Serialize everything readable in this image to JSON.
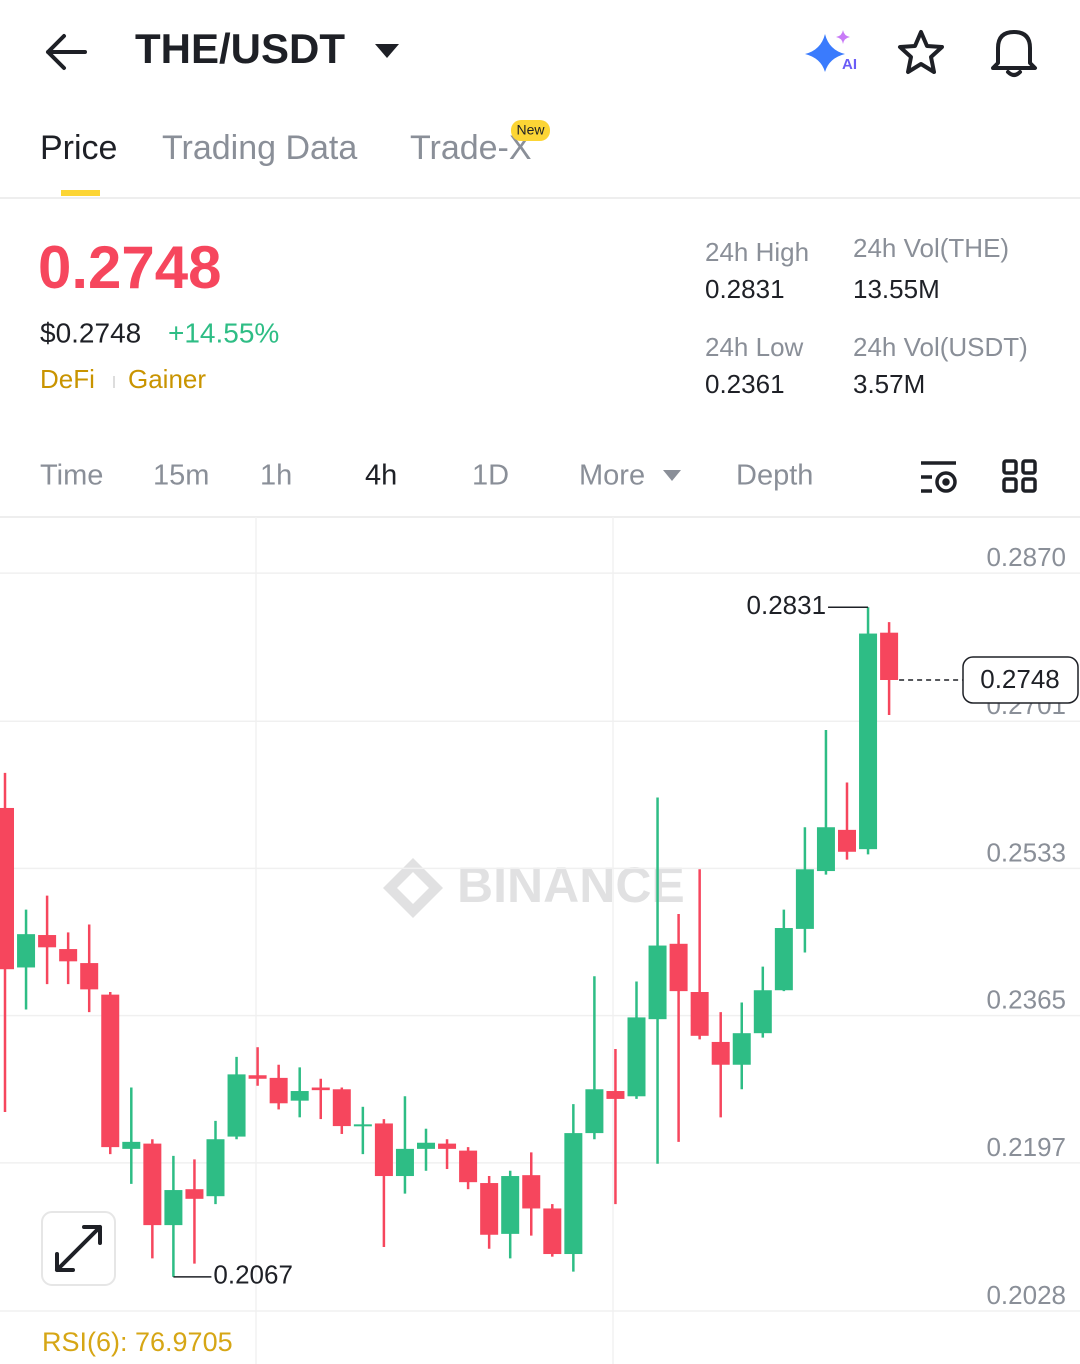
{
  "header": {
    "title": "THE/USDT"
  },
  "tabs": [
    "Price",
    "Trading Data",
    "Trade-X"
  ],
  "new_badge": "New",
  "price": {
    "last": "0.2748",
    "usd": "$0.2748",
    "change": "+14.55%",
    "tags": [
      "DeFi",
      "Gainer"
    ]
  },
  "stats": [
    {
      "label": "24h High",
      "value": "0.2831"
    },
    {
      "label": "24h Vol(THE)",
      "value": "13.55M"
    },
    {
      "label": "24h Low",
      "value": "0.2361"
    },
    {
      "label": "24h Vol(USDT)",
      "value": "3.57M"
    }
  ],
  "intervals": [
    "Time",
    "15m",
    "1h",
    "4h",
    "1D",
    "More",
    "Depth"
  ],
  "watermark": "BINANCE",
  "rsi": "RSI(6): 76.9705",
  "chart_data": {
    "type": "candlestick",
    "up_color": "#2ebd85",
    "down_color": "#f6465d",
    "open": [
      0.2602,
      0.242,
      0.2457,
      0.2441,
      0.2425,
      0.2389,
      0.2213,
      0.2219,
      0.2126,
      0.2167,
      0.2159,
      0.2227,
      0.2297,
      0.2294,
      0.2268,
      0.2283,
      0.2281,
      0.2239,
      0.2242,
      0.2182,
      0.2213,
      0.2219,
      0.2211,
      0.2174,
      0.2116,
      0.2183,
      0.2145,
      0.2093,
      0.2231,
      0.2279,
      0.2273,
      0.2361,
      0.2447,
      0.2392,
      0.2335,
      0.2309,
      0.2345,
      0.2394,
      0.2464,
      0.253,
      0.2577,
      0.2555,
      0.2802
    ],
    "high": [
      0.2642,
      0.2486,
      0.2502,
      0.246,
      0.2469,
      0.2392,
      0.2283,
      0.2224,
      0.2205,
      0.2201,
      0.2245,
      0.2318,
      0.2329,
      0.2309,
      0.2306,
      0.2293,
      0.2283,
      0.2261,
      0.2247,
      0.2273,
      0.2236,
      0.2224,
      0.2215,
      0.2182,
      0.2188,
      0.2209,
      0.215,
      0.2264,
      0.241,
      0.2327,
      0.2404,
      0.2614,
      0.2481,
      0.2532,
      0.2369,
      0.238,
      0.2421,
      0.2486,
      0.258,
      0.2691,
      0.2631,
      0.2831,
      0.2814
    ],
    "low": [
      0.2255,
      0.2372,
      0.2401,
      0.2401,
      0.2369,
      0.2207,
      0.2173,
      0.2088,
      0.2067,
      0.2082,
      0.215,
      0.2224,
      0.2285,
      0.2258,
      0.2249,
      0.2247,
      0.223,
      0.2207,
      0.2101,
      0.2162,
      0.2188,
      0.219,
      0.2167,
      0.2099,
      0.2088,
      0.2114,
      0.209,
      0.2073,
      0.2224,
      0.215,
      0.227,
      0.2196,
      0.2221,
      0.2338,
      0.2249,
      0.2281,
      0.234,
      0.2393,
      0.2437,
      0.2526,
      0.2543,
      0.2549,
      0.2708
    ],
    "close": [
      0.2418,
      0.2458,
      0.2443,
      0.2427,
      0.2395,
      0.2215,
      0.2221,
      0.2126,
      0.2166,
      0.2156,
      0.2224,
      0.2298,
      0.2293,
      0.2265,
      0.2279,
      0.228,
      0.2239,
      0.2241,
      0.2182,
      0.2213,
      0.222,
      0.2213,
      0.2175,
      0.2115,
      0.2182,
      0.2145,
      0.2093,
      0.2231,
      0.2281,
      0.227,
      0.2363,
      0.2445,
      0.2393,
      0.2342,
      0.2309,
      0.2345,
      0.2394,
      0.2465,
      0.2532,
      0.258,
      0.2552,
      0.2801,
      0.2748
    ],
    "ylim": [
      0.2028,
      0.2934
    ],
    "yticks": [
      {
        "value": 0.287,
        "label": "0.2870"
      },
      0.2701,
      0.2533,
      0.2365,
      0.2197,
      0.2028
    ],
    "grid": true,
    "annotations": {
      "high": "0.2831",
      "low": "0.2067",
      "last": "0.2748"
    }
  }
}
